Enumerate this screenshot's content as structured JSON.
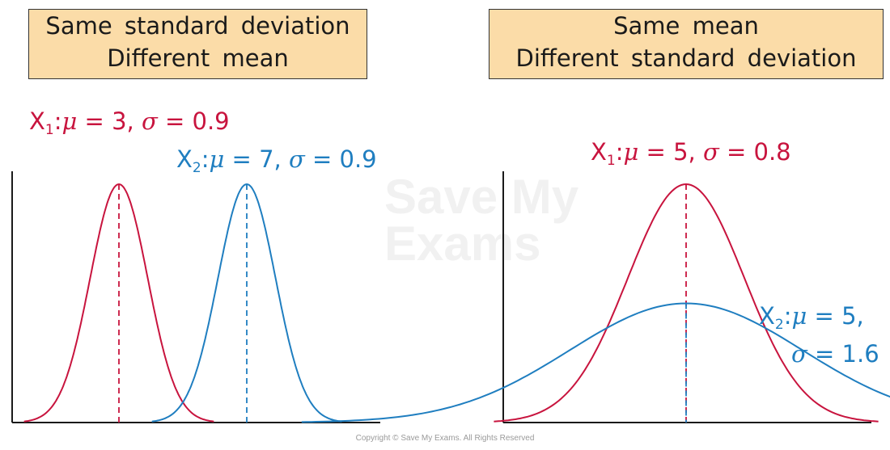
{
  "left_panel": {
    "header_line1": "Same standard deviation",
    "header_line2": "Different mean",
    "curve1_label": {
      "name": "X",
      "sub": "1",
      "mu": "μ",
      "mid": " = 3, ",
      "sigma": "σ",
      "end": " = 0.9"
    },
    "curve2_label": {
      "name": "X",
      "sub": "2",
      "mu": "μ",
      "mid": " = 7, ",
      "sigma": "σ",
      "end": " = 0.9"
    }
  },
  "right_panel": {
    "header_line1": "Same mean",
    "header_line2": "Different standard deviation",
    "curve1_label": {
      "name": "X",
      "sub": "1",
      "mu": "μ",
      "mid": " = 5, ",
      "sigma": "σ",
      "end": " = 0.8"
    },
    "curve2_label_line1": {
      "name": "X",
      "sub": "2",
      "mu": "μ",
      "end": " = 5,"
    },
    "curve2_label_line2": {
      "sigma": "σ",
      "end": " = 1.6"
    }
  },
  "colors": {
    "red": "#c8143e",
    "blue": "#1f7ec0",
    "header_fill": "#fbdca8"
  },
  "chart_data": [
    {
      "type": "line",
      "series": [
        {
          "name": "X1",
          "mean": 3,
          "sd": 0.9,
          "color": "#c8143e"
        },
        {
          "name": "X2",
          "mean": 7,
          "sd": 0.9,
          "color": "#1f7ec0"
        }
      ]
    },
    {
      "type": "line",
      "series": [
        {
          "name": "X1",
          "mean": 5,
          "sd": 0.8,
          "color": "#c8143e"
        },
        {
          "name": "X2",
          "mean": 5,
          "sd": 1.6,
          "color": "#1f7ec0"
        }
      ]
    }
  ],
  "watermark": {
    "line1": "Save My",
    "line2": "Exams"
  },
  "copyright": "Copyright © Save My Exams. All Rights Reserved"
}
